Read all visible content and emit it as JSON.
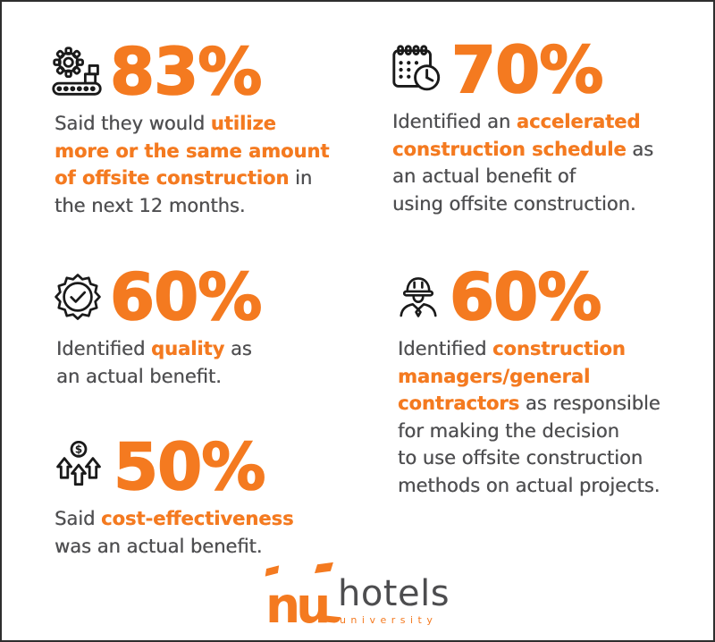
{
  "colors": {
    "accent_orange": "#F47A20",
    "body_gray": "#4F4F51",
    "icon_black": "#1A1A1A",
    "logo_gray": "#4D4D4F",
    "background": "#FFFFFF",
    "frame_border": "#2E2E2E"
  },
  "chart_data": {
    "type": "table",
    "title": "Offsite construction survey statistics",
    "categories": [
      "Said they would utilize more or the same amount of offsite construction in the next 12 months",
      "Identified an accelerated construction schedule as an actual benefit of using offsite construction",
      "Identified quality as an actual benefit",
      "Identified construction managers/general contractors as responsible for making the decision to use offsite construction methods on actual projects",
      "Said cost-effectiveness was an actual benefit"
    ],
    "values": [
      83,
      70,
      60,
      60,
      50
    ],
    "unit": "%"
  },
  "stats": [
    {
      "value": "83%",
      "icon": "manufacturing-conveyor-icon",
      "segments": [
        {
          "text": "Said they would ",
          "highlight": false
        },
        {
          "text": "utilize\nmore or the same amount\nof offsite construction",
          "highlight": true
        },
        {
          "text": " in\nthe next 12 months.",
          "highlight": false
        }
      ]
    },
    {
      "value": "70%",
      "icon": "schedule-calendar-clock-icon",
      "segments": [
        {
          "text": "Identified an ",
          "highlight": false
        },
        {
          "text": "accelerated\nconstruction schedule",
          "highlight": true
        },
        {
          "text": " as\nan actual benefit of\nusing offsite construction.",
          "highlight": false
        }
      ]
    },
    {
      "value": "60%",
      "icon": "quality-badge-check-icon",
      "segments": [
        {
          "text": "Identified ",
          "highlight": false
        },
        {
          "text": "quality",
          "highlight": true
        },
        {
          "text": " as\nan actual benefit.",
          "highlight": false
        }
      ]
    },
    {
      "value": "60%",
      "icon": "construction-manager-icon",
      "segments": [
        {
          "text": "Identified ",
          "highlight": false
        },
        {
          "text": "construction\nmanagers/general\ncontractors",
          "highlight": true
        },
        {
          "text": " as responsible\nfor making the decision\nto use offsite construction\nmethods on actual projects.",
          "highlight": false
        }
      ]
    },
    {
      "value": "50%",
      "icon": "cost-growth-arrows-icon",
      "segments": [
        {
          "text": "Said ",
          "highlight": false
        },
        {
          "text": "cost-effectiveness",
          "highlight": true
        },
        {
          "text": "\nwas an actual benefit.",
          "highlight": false
        }
      ]
    }
  ],
  "brand": {
    "mark": "nu",
    "name": "hotels",
    "tagline": "university"
  }
}
